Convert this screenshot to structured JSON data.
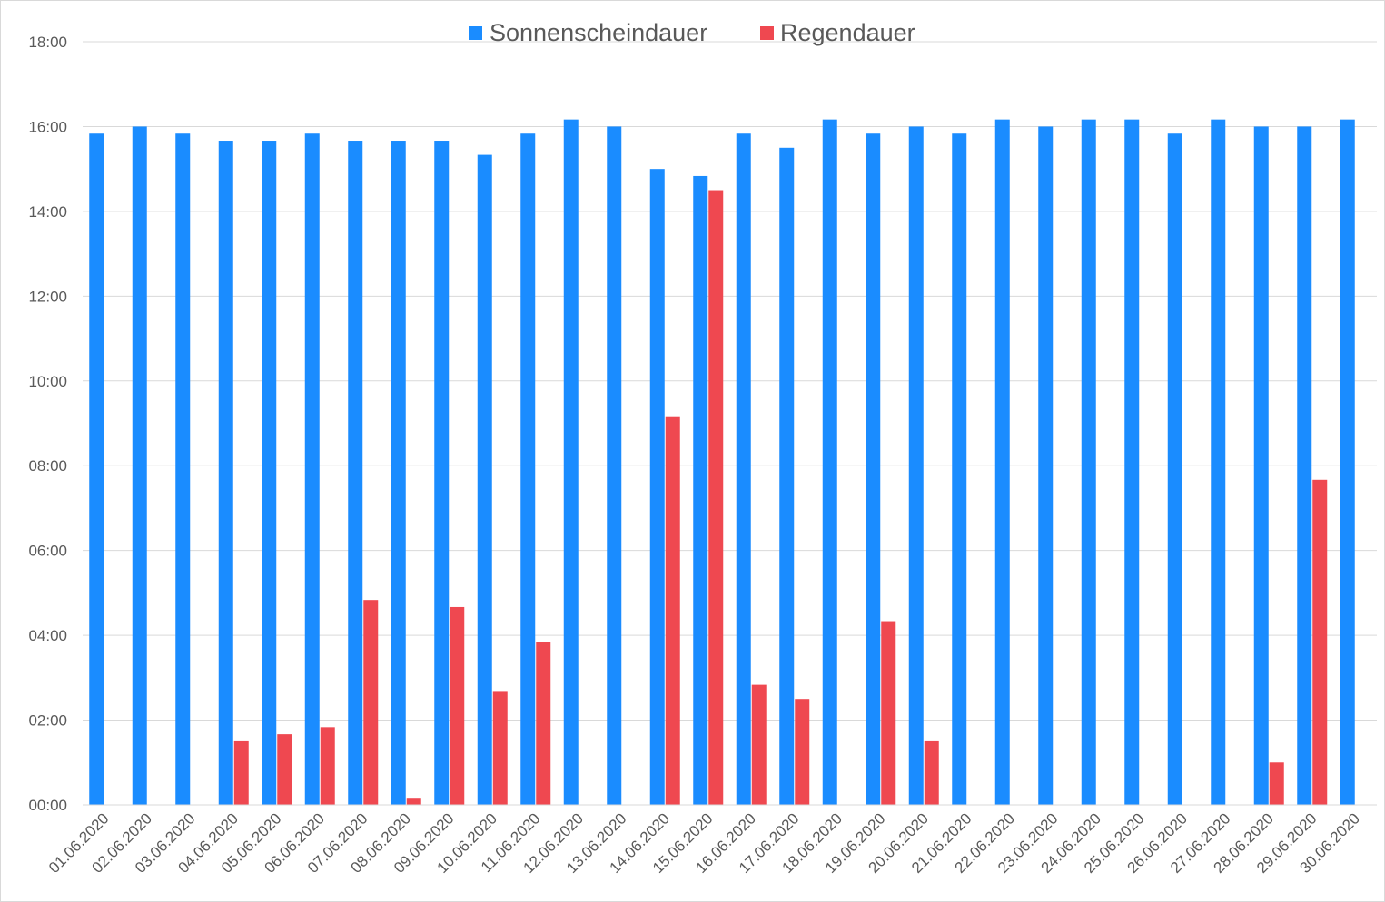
{
  "chart_data": {
    "type": "bar",
    "categories": [
      "01.06.2020",
      "02.06.2020",
      "03.06.2020",
      "04.06.2020",
      "05.06.2020",
      "06.06.2020",
      "07.06.2020",
      "08.06.2020",
      "09.06.2020",
      "10.06.2020",
      "11.06.2020",
      "12.06.2020",
      "13.06.2020",
      "14.06.2020",
      "15.06.2020",
      "16.06.2020",
      "17.06.2020",
      "18.06.2020",
      "19.06.2020",
      "20.06.2020",
      "21.06.2020",
      "22.06.2020",
      "23.06.2020",
      "24.06.2020",
      "25.06.2020",
      "26.06.2020",
      "27.06.2020",
      "28.06.2020",
      "29.06.2020",
      "30.06.2020"
    ],
    "series": [
      {
        "name": "Sonnenscheindauer",
        "color": "#1a8cff",
        "values": [
          "15:50",
          "16:00",
          "15:50",
          "15:40",
          "15:40",
          "15:50",
          "15:40",
          "15:40",
          "15:40",
          "15:20",
          "15:50",
          "16:10",
          "16:00",
          "15:00",
          "14:50",
          "15:50",
          "15:30",
          "16:10",
          "15:50",
          "16:00",
          "15:50",
          "16:10",
          "16:00",
          "16:10",
          "16:10",
          "15:50",
          "16:10",
          "16:00",
          "16:00",
          "16:10"
        ]
      },
      {
        "name": "Regendauer",
        "color": "#ef4850",
        "values": [
          "00:00",
          "00:00",
          "00:00",
          "01:30",
          "01:40",
          "01:50",
          "04:50",
          "00:10",
          "04:40",
          "02:40",
          "03:50",
          "00:00",
          "00:00",
          "09:10",
          "14:30",
          "02:50",
          "02:30",
          "00:00",
          "04:20",
          "01:30",
          "00:00",
          "00:00",
          "00:00",
          "00:00",
          "00:00",
          "00:00",
          "00:00",
          "01:00",
          "07:40",
          "00:00"
        ]
      }
    ],
    "y_ticks": [
      "00:00",
      "02:00",
      "04:00",
      "06:00",
      "08:00",
      "10:00",
      "12:00",
      "14:00",
      "16:00",
      "18:00"
    ],
    "ylim": [
      "00:00",
      "18:00"
    ],
    "grid": true,
    "legend_position": "top-center",
    "gridline_color": "#d9d9d9"
  }
}
